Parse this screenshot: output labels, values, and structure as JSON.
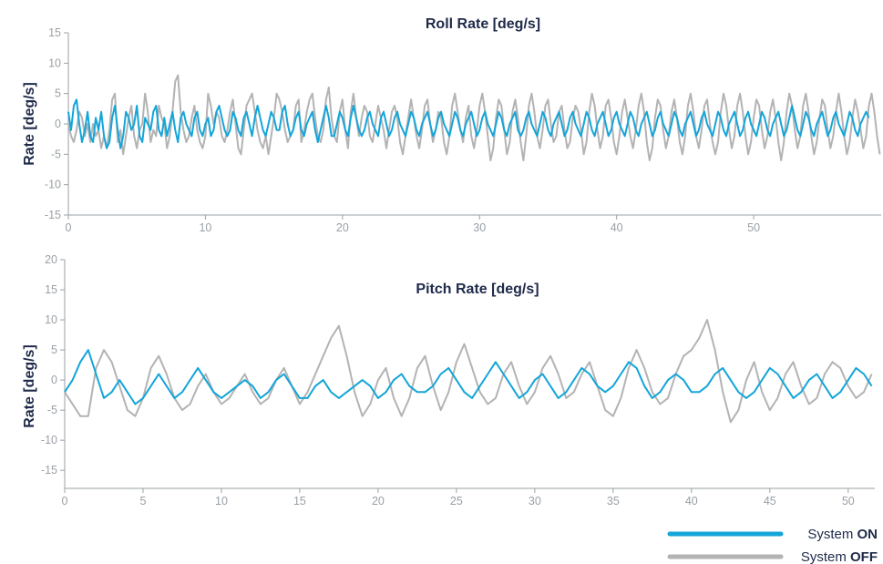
{
  "colors": {
    "on": "#14a5d9",
    "off": "#b3b3b3",
    "text": "#1f2a4a",
    "axis": "#9aa0a6"
  },
  "legend": {
    "placement": "bottom-right",
    "items": [
      {
        "prefix": "System ",
        "state": "ON",
        "color": "#14a5d9"
      },
      {
        "prefix": "System ",
        "state": "OFF",
        "color": "#b3b3b3"
      }
    ]
  },
  "chart_data": [
    {
      "type": "line",
      "title": "Roll Rate [deg/s]",
      "ylabel": "Rate [deg/s]",
      "xlabel": "",
      "xlim": [
        0,
        59.3
      ],
      "ylim": [
        -15,
        15
      ],
      "xticks": [
        0,
        10,
        20,
        30,
        40,
        50
      ],
      "yticks": [
        15,
        10,
        5,
        0,
        -5,
        -10,
        -15
      ],
      "grid": false,
      "x_step": 0.2,
      "series": [
        {
          "key": "off",
          "name": "System OFF",
          "color": "#b3b3b3",
          "values": [
            0,
            -2,
            -3,
            -1,
            2,
            1,
            -2,
            0,
            -3,
            0,
            -2,
            -1,
            -4,
            -2,
            -4,
            -1,
            4,
            5,
            -3,
            -1,
            -5,
            -2,
            1,
            3,
            -2,
            -4,
            -1,
            0,
            5,
            2,
            -3,
            -1,
            -2,
            3,
            1,
            0,
            -4,
            -2,
            2,
            7,
            8,
            2,
            -1,
            -3,
            -2,
            1,
            3,
            -1,
            -3,
            -4,
            -2,
            5,
            3,
            0,
            2,
            1,
            -2,
            -3,
            -1,
            2,
            4,
            0,
            -4,
            -5,
            -1,
            3,
            4,
            5,
            2,
            -1,
            -3,
            -4,
            -2,
            -5,
            -2,
            1,
            5,
            4,
            2,
            -1,
            -3,
            -2,
            -1,
            3,
            4,
            -3,
            -1,
            2,
            4,
            5,
            1,
            -2,
            -3,
            -1,
            4,
            6,
            1,
            -2,
            -3,
            2,
            4,
            -1,
            -4,
            2,
            5,
            1,
            -2,
            1,
            3,
            2,
            -2,
            -3,
            0,
            3,
            1,
            -1,
            -4,
            -1,
            2,
            3,
            1,
            -3,
            -5,
            -2,
            1,
            4,
            1,
            -2,
            -4,
            -1,
            3,
            4,
            0,
            -3,
            -1,
            2,
            1,
            -3,
            -5,
            -2,
            3,
            5,
            2,
            -1,
            -3,
            1,
            3,
            -2,
            -4,
            -1,
            3,
            5,
            2,
            -2,
            -6,
            -4,
            1,
            4,
            3,
            -1,
            -5,
            -3,
            2,
            4,
            1,
            -3,
            -6,
            -2,
            3,
            5,
            2,
            -2,
            -4,
            -1,
            3,
            4,
            0,
            -3,
            -2,
            2,
            3,
            -1,
            -4,
            -3,
            1,
            3,
            2,
            -1,
            -5,
            -3,
            2,
            5,
            3,
            -1,
            -4,
            -2,
            3,
            4,
            1,
            -3,
            -5,
            -2,
            2,
            4,
            1,
            -2,
            -4,
            -1,
            3,
            5,
            2,
            -3,
            -6,
            -4,
            1,
            4,
            3,
            -1,
            -4,
            -2,
            2,
            4,
            1,
            -3,
            -5,
            -2,
            3,
            5,
            2,
            -2,
            -4,
            -1,
            3,
            4,
            0,
            -3,
            -5,
            -3,
            2,
            5,
            3,
            -1,
            -4,
            -2,
            3,
            5,
            2,
            -2,
            -5,
            -3,
            1,
            4,
            3,
            -1,
            -4,
            -2,
            2,
            4,
            1,
            -3,
            -6,
            -3,
            2,
            5,
            3,
            -1,
            -4,
            -2,
            3,
            5,
            2,
            -2,
            -5,
            -3,
            1,
            4,
            3,
            -1,
            -4,
            -2,
            2,
            5,
            2,
            -2,
            -5,
            -3,
            1,
            4,
            2,
            -1,
            -4,
            -2,
            3,
            5,
            2,
            -2,
            -5,
            -3,
            1,
            4,
            3,
            -1,
            -4,
            -2,
            2,
            1
          ]
        },
        {
          "key": "on",
          "name": "System ON",
          "color": "#14a5d9",
          "values": [
            2,
            -1,
            3,
            4,
            0,
            -3,
            -1,
            2,
            -2,
            -3,
            1,
            -1,
            2,
            -2,
            -4,
            -3,
            1,
            3,
            -1,
            -4,
            -2,
            2,
            1,
            -1,
            0,
            3,
            -2,
            -3,
            1,
            0,
            -1,
            2,
            3,
            -1,
            -2,
            1,
            -2,
            0,
            2,
            -1,
            -3,
            1,
            2,
            0,
            -1,
            -2,
            1,
            2,
            -1,
            -2,
            0,
            1,
            -2,
            -1,
            2,
            3,
            1,
            -1,
            -2,
            -1,
            2,
            1,
            -1,
            -2,
            1,
            2,
            0,
            -2,
            1,
            3,
            1,
            -1,
            -2,
            0,
            2,
            1,
            -1,
            -1,
            2,
            3,
            0,
            -2,
            -1,
            1,
            2,
            -1,
            -2,
            0,
            1,
            2,
            -1,
            -3,
            -1,
            1,
            3,
            1,
            -2,
            -2,
            0,
            2,
            1,
            -1,
            -2,
            1,
            3,
            1,
            -1,
            -2,
            -1,
            1,
            2,
            0,
            -1,
            -2,
            1,
            2,
            0,
            -2,
            -1,
            1,
            2,
            0,
            -1,
            -2,
            0,
            2,
            1,
            -1,
            -2,
            0,
            1,
            2,
            0,
            -2,
            -1,
            1,
            2,
            0,
            -1,
            -2,
            0,
            2,
            1,
            -1,
            -2,
            0,
            1,
            2,
            0,
            -2,
            -1,
            1,
            2,
            0,
            -1,
            -2,
            0,
            2,
            1,
            -1,
            -2,
            0,
            1,
            2,
            -1,
            -2,
            -1,
            1,
            2,
            0,
            -1,
            -2,
            0,
            2,
            1,
            -1,
            -2,
            0,
            1,
            2,
            0,
            -2,
            -1,
            1,
            2,
            0,
            -1,
            -2,
            0,
            2,
            1,
            -1,
            -2,
            0,
            1,
            2,
            0,
            -2,
            -1,
            1,
            2,
            0,
            -1,
            -2,
            0,
            2,
            1,
            -1,
            -2,
            0,
            1,
            2,
            0,
            -2,
            -1,
            1,
            2,
            0,
            -1,
            -2,
            0,
            2,
            1,
            -1,
            -2,
            0,
            1,
            2,
            0,
            -2,
            -1,
            1,
            2,
            0,
            -1,
            -2,
            0,
            2,
            1,
            -1,
            -2,
            0,
            1,
            2,
            0,
            -2,
            -1,
            1,
            2,
            0,
            -1,
            -2,
            0,
            2,
            1,
            -1,
            -2,
            0,
            1,
            2,
            0,
            -2,
            -1,
            1,
            3,
            1,
            -1,
            -2,
            0,
            2,
            1,
            -1,
            -2,
            0,
            1,
            2,
            0,
            -2,
            -1,
            1,
            2,
            0,
            -1,
            -2,
            0,
            2,
            1,
            -1,
            -2,
            0,
            1,
            2,
            1
          ]
        }
      ]
    },
    {
      "type": "line",
      "title": "Pitch Rate [deg/s]",
      "ylabel": "Rate [deg/s]",
      "xlabel": "",
      "xlim": [
        0,
        51.7
      ],
      "ylim": [
        -18,
        20
      ],
      "xticks": [
        0,
        5,
        10,
        15,
        20,
        25,
        30,
        35,
        40,
        45,
        50
      ],
      "yticks": [
        20,
        15,
        10,
        5,
        0,
        -5,
        -10,
        -15
      ],
      "grid": false,
      "x_step": 0.5,
      "series": [
        {
          "key": "off",
          "name": "System OFF",
          "color": "#b3b3b3",
          "values": [
            -2,
            -4,
            -6,
            -6,
            2,
            5,
            3,
            -1,
            -5,
            -6,
            -3,
            2,
            4,
            1,
            -3,
            -5,
            -4,
            -1,
            1,
            -2,
            -4,
            -3,
            -1,
            1,
            -2,
            -4,
            -3,
            0,
            2,
            -1,
            -4,
            -2,
            1,
            4,
            7,
            9,
            4,
            -2,
            -6,
            -4,
            0,
            2,
            -3,
            -6,
            -3,
            2,
            4,
            -1,
            -5,
            -2,
            3,
            6,
            2,
            -2,
            -4,
            -3,
            1,
            3,
            -1,
            -4,
            -2,
            2,
            4,
            1,
            -3,
            -2,
            1,
            3,
            -1,
            -5,
            -6,
            -3,
            2,
            5,
            2,
            -2,
            -4,
            -3,
            1,
            4,
            5,
            7,
            10,
            5,
            -2,
            -7,
            -5,
            0,
            3,
            -2,
            -5,
            -3,
            1,
            3,
            -1,
            -4,
            -3,
            1,
            3,
            2,
            -1,
            -3,
            -2,
            1,
            3,
            -2,
            -5,
            -3,
            1,
            4,
            6,
            3,
            -2,
            -6,
            -4,
            1,
            4,
            3,
            -1,
            -4,
            -2,
            2,
            5,
            2,
            -2,
            -6,
            -5,
            -1,
            2,
            5,
            8,
            10,
            4,
            -3,
            -7,
            -5,
            0,
            3,
            2,
            -2,
            -5,
            -3,
            1,
            4,
            3,
            -1,
            -5,
            -4,
            0,
            3,
            5,
            2,
            -2,
            -6,
            -5,
            -1,
            3,
            4,
            1,
            -3,
            -5,
            -3,
            1,
            4,
            7,
            5,
            1,
            -3,
            -4,
            -2,
            1,
            3,
            2,
            -2,
            -5,
            -3,
            1,
            4,
            -1,
            -5,
            -6,
            -3,
            2,
            4,
            -1,
            -4,
            -2,
            2,
            5,
            1,
            -3,
            -6,
            -5,
            -1,
            3,
            5,
            2,
            -2,
            -5,
            -8,
            -6,
            -2,
            3,
            6,
            2,
            -2,
            -5
          ]
        },
        {
          "key": "on",
          "name": "System ON",
          "color": "#14a5d9",
          "values": [
            -2,
            0,
            3,
            5,
            1,
            -3,
            -2,
            0,
            -2,
            -4,
            -3,
            -1,
            1,
            -1,
            -3,
            -2,
            0,
            2,
            0,
            -2,
            -3,
            -2,
            -1,
            0,
            -1,
            -3,
            -2,
            0,
            1,
            -1,
            -3,
            -3,
            -1,
            0,
            -2,
            -3,
            -2,
            -1,
            0,
            -1,
            -3,
            -2,
            0,
            1,
            -1,
            -2,
            -2,
            -1,
            1,
            2,
            0,
            -2,
            -3,
            -1,
            1,
            3,
            1,
            -1,
            -3,
            -2,
            0,
            1,
            -1,
            -3,
            -2,
            0,
            2,
            1,
            -1,
            -2,
            -1,
            1,
            3,
            2,
            -1,
            -3,
            -2,
            0,
            1,
            0,
            -2,
            -2,
            -1,
            1,
            2,
            0,
            -2,
            -3,
            -2,
            0,
            2,
            1,
            -1,
            -3,
            -2,
            0,
            1,
            -1,
            -3,
            -2,
            0,
            2,
            1,
            -1,
            -2,
            -1,
            1,
            3,
            2,
            -1,
            -3,
            -2,
            0,
            1,
            0,
            -2,
            -2,
            -1,
            1,
            2,
            0,
            -2,
            -3,
            -2,
            0,
            2,
            1,
            -1,
            -3,
            -2,
            0,
            1,
            -1,
            -3,
            -2,
            0,
            2,
            1,
            -1,
            -2,
            -1,
            1,
            2,
            0,
            -2,
            -3,
            -2,
            0,
            2,
            1,
            -1,
            -3,
            -2,
            0,
            1,
            -1,
            -3,
            -2,
            0,
            2,
            1,
            -1,
            -2,
            -1,
            1,
            2,
            0,
            -2,
            -3,
            -2,
            0,
            2,
            1,
            -1,
            -3,
            -2,
            0,
            1,
            -1,
            -3,
            -2,
            0,
            2,
            1,
            -1,
            -2,
            -1,
            1,
            2,
            0,
            -2,
            -3,
            -2,
            0,
            2,
            1,
            -1,
            -3,
            -2,
            0,
            1,
            2,
            4,
            6
          ]
        }
      ]
    }
  ]
}
